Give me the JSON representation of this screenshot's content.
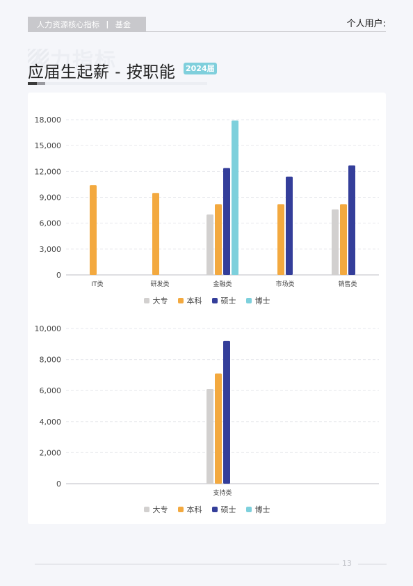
{
  "header": {
    "section": "人力资源核心指标",
    "separator": "|",
    "category": "基金",
    "user_label": "个人用户:"
  },
  "watermark": "人力指标",
  "title": "应届生起薪 - 按职能",
  "year_badge": "2024届",
  "colors": {
    "大专": "#d2d0cf",
    "本科": "#f3a93f",
    "硕士": "#343e9a",
    "博士": "#7dd0dc"
  },
  "chart_data": [
    {
      "type": "bar",
      "categories": [
        "IT类",
        "研发类",
        "金融类",
        "市场类",
        "销售类"
      ],
      "series": [
        {
          "name": "大专",
          "values": [
            null,
            null,
            7000,
            null,
            7600
          ]
        },
        {
          "name": "本科",
          "values": [
            10400,
            9500,
            8200,
            8200,
            8200
          ]
        },
        {
          "name": "硕士",
          "values": [
            null,
            null,
            12400,
            11400,
            12700
          ]
        },
        {
          "name": "博士",
          "values": [
            null,
            null,
            17900,
            null,
            null
          ]
        }
      ],
      "yticks": [
        "0",
        "3,000",
        "6,000",
        "9,000",
        "12,000",
        "15,000",
        "18,000"
      ],
      "ylim": [
        0,
        18000
      ],
      "legend_position": "bottom-center",
      "grid": true
    },
    {
      "type": "bar",
      "categories": [
        "支持类"
      ],
      "series": [
        {
          "name": "大专",
          "values": [
            6100
          ]
        },
        {
          "name": "本科",
          "values": [
            7100
          ]
        },
        {
          "name": "硕士",
          "values": [
            9200
          ]
        },
        {
          "name": "博士",
          "values": [
            null
          ]
        }
      ],
      "yticks": [
        "0",
        "2,000",
        "4,000",
        "6,000",
        "8,000",
        "10,000"
      ],
      "ylim": [
        0,
        10000
      ],
      "legend_position": "bottom-center",
      "grid": true
    }
  ],
  "legend": [
    "大专",
    "本科",
    "硕士",
    "博士"
  ],
  "footer": {
    "page_number": "13"
  }
}
